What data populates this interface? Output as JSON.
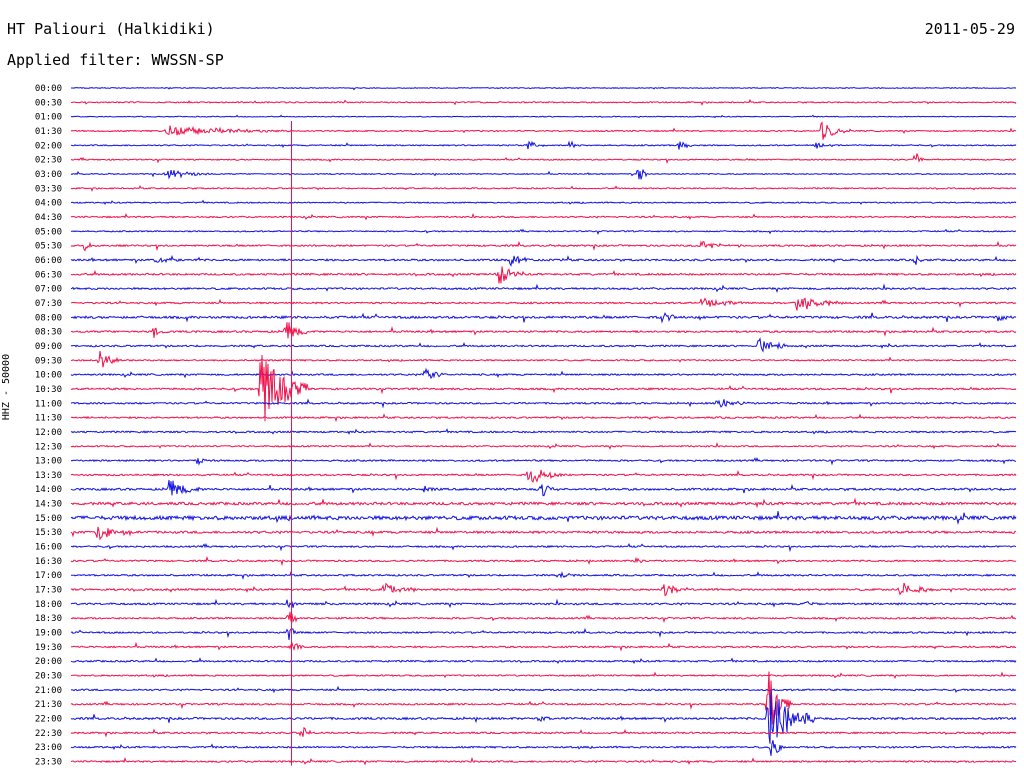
{
  "header": {
    "station": "HT Paliouri (Halkidiki)",
    "date": "2011-05-29",
    "filter": "Applied filter: WWSSN-SP",
    "y_axis_label": "HHZ - 50000"
  },
  "colors": {
    "even_trace": "#1010e0",
    "odd_trace": "#f0104a",
    "background": "#ffffff",
    "text": "#000000"
  },
  "chart_data": {
    "type": "line",
    "title": "HT Paliouri (Halkidiki)",
    "subtitle": "Applied filter: WWSSN-SP",
    "ylabel": "HHZ - 50000",
    "row_labels": [
      "00:00",
      "00:30",
      "01:00",
      "01:30",
      "02:00",
      "02:30",
      "03:00",
      "03:30",
      "04:00",
      "04:30",
      "05:00",
      "05:30",
      "06:00",
      "06:30",
      "07:00",
      "07:30",
      "08:00",
      "08:30",
      "09:00",
      "09:30",
      "10:00",
      "10:30",
      "11:00",
      "11:30",
      "12:00",
      "12:30",
      "13:00",
      "13:30",
      "14:00",
      "14:30",
      "15:00",
      "15:30",
      "16:00",
      "16:30",
      "17:00",
      "17:30",
      "18:00",
      "18:30",
      "19:00",
      "19:30",
      "20:00",
      "20:30",
      "21:00",
      "21:30",
      "22:00",
      "22:30",
      "23:00",
      "23:30"
    ],
    "row_minutes": 30,
    "x_range_minutes": [
      0,
      30
    ],
    "noise_levels": [
      0.4,
      0.6,
      0.4,
      0.6,
      0.6,
      0.6,
      0.5,
      0.6,
      0.6,
      0.7,
      0.6,
      0.8,
      0.9,
      0.9,
      0.9,
      0.8,
      1.1,
      0.9,
      0.8,
      0.7,
      0.8,
      0.9,
      0.8,
      0.8,
      0.8,
      0.7,
      0.8,
      0.8,
      1.0,
      1.3,
      1.8,
      1.1,
      0.8,
      0.8,
      0.8,
      0.9,
      0.9,
      0.8,
      0.8,
      0.8,
      0.8,
      0.7,
      0.8,
      0.8,
      1.0,
      0.8,
      0.8,
      0.8
    ],
    "events": [
      {
        "row": 3,
        "minute": 3.0,
        "amplitude": 6,
        "duration": 4.0
      },
      {
        "row": 3,
        "minute": 23.8,
        "amplitude": 20,
        "duration": 0.6
      },
      {
        "row": 4,
        "minute": 14.5,
        "amplitude": 6,
        "duration": 0.5
      },
      {
        "row": 4,
        "minute": 15.8,
        "amplitude": 6,
        "duration": 0.4
      },
      {
        "row": 4,
        "minute": 19.3,
        "amplitude": 6,
        "duration": 0.4
      },
      {
        "row": 4,
        "minute": 23.6,
        "amplitude": 4,
        "duration": 0.6
      },
      {
        "row": 5,
        "minute": 26.8,
        "amplitude": 12,
        "duration": 0.3
      },
      {
        "row": 6,
        "minute": 3.0,
        "amplitude": 5,
        "duration": 1.5
      },
      {
        "row": 6,
        "minute": 18.0,
        "amplitude": 14,
        "duration": 0.3
      },
      {
        "row": 11,
        "minute": 0.4,
        "amplitude": 8,
        "duration": 0.3
      },
      {
        "row": 11,
        "minute": 20.0,
        "amplitude": 5,
        "duration": 1.0
      },
      {
        "row": 12,
        "minute": 2.7,
        "amplitude": 5,
        "duration": 0.7
      },
      {
        "row": 12,
        "minute": 13.9,
        "amplitude": 9,
        "duration": 0.8
      },
      {
        "row": 12,
        "minute": 26.8,
        "amplitude": 8,
        "duration": 0.2
      },
      {
        "row": 13,
        "minute": 13.5,
        "amplitude": 16,
        "duration": 0.8
      },
      {
        "row": 15,
        "minute": 20.0,
        "amplitude": 5,
        "duration": 1.5
      },
      {
        "row": 15,
        "minute": 23.0,
        "amplitude": 10,
        "duration": 1.5
      },
      {
        "row": 16,
        "minute": 18.7,
        "amplitude": 7,
        "duration": 0.8
      },
      {
        "row": 16,
        "minute": 29.4,
        "amplitude": 6,
        "duration": 0.5
      },
      {
        "row": 17,
        "minute": 2.6,
        "amplitude": 6,
        "duration": 0.5
      },
      {
        "row": 17,
        "minute": 6.8,
        "amplitude": 12,
        "duration": 0.8
      },
      {
        "row": 18,
        "minute": 21.8,
        "amplitude": 9,
        "duration": 1.0
      },
      {
        "row": 19,
        "minute": 0.9,
        "amplitude": 10,
        "duration": 0.8
      },
      {
        "row": 20,
        "minute": 11.2,
        "amplitude": 8,
        "duration": 0.7
      },
      {
        "row": 21,
        "minute": 6.0,
        "amplitude": 42,
        "duration": 1.5
      },
      {
        "row": 22,
        "minute": 20.5,
        "amplitude": 7,
        "duration": 1.0
      },
      {
        "row": 26,
        "minute": 4.0,
        "amplitude": 4,
        "duration": 0.6
      },
      {
        "row": 27,
        "minute": 14.5,
        "amplitude": 11,
        "duration": 1.2
      },
      {
        "row": 28,
        "minute": 3.1,
        "amplitude": 10,
        "duration": 1.2
      },
      {
        "row": 28,
        "minute": 11.2,
        "amplitude": 6,
        "duration": 0.5
      },
      {
        "row": 28,
        "minute": 14.9,
        "amplitude": 10,
        "duration": 0.6
      },
      {
        "row": 31,
        "minute": 0.8,
        "amplitude": 8,
        "duration": 1.5
      },
      {
        "row": 33,
        "minute": 17.9,
        "amplitude": 4,
        "duration": 0.5
      },
      {
        "row": 34,
        "minute": 15.5,
        "amplitude": 4,
        "duration": 0.5
      },
      {
        "row": 35,
        "minute": 9.9,
        "amplitude": 8,
        "duration": 1.2
      },
      {
        "row": 35,
        "minute": 18.8,
        "amplitude": 8,
        "duration": 0.8
      },
      {
        "row": 35,
        "minute": 26.3,
        "amplitude": 8,
        "duration": 1.2
      },
      {
        "row": 36,
        "minute": 6.9,
        "amplitude": 14,
        "duration": 0.3
      },
      {
        "row": 36,
        "minute": 23.3,
        "amplitude": 3,
        "duration": 0.8
      },
      {
        "row": 37,
        "minute": 6.9,
        "amplitude": 22,
        "duration": 0.3
      },
      {
        "row": 38,
        "minute": 6.9,
        "amplitude": 12,
        "duration": 0.3
      },
      {
        "row": 39,
        "minute": 7.0,
        "amplitude": 10,
        "duration": 0.4
      },
      {
        "row": 43,
        "minute": 22.1,
        "amplitude": 40,
        "duration": 0.8
      },
      {
        "row": 44,
        "minute": 22.1,
        "amplitude": 38,
        "duration": 1.5
      },
      {
        "row": 44,
        "minute": 14.8,
        "amplitude": 6,
        "duration": 0.5
      },
      {
        "row": 45,
        "minute": 7.3,
        "amplitude": 12,
        "duration": 0.3
      },
      {
        "row": 46,
        "minute": 22.2,
        "amplitude": 14,
        "duration": 0.5
      }
    ],
    "marker_lines": [
      {
        "row_start": 3,
        "row_end": 47,
        "minute": 7.0
      }
    ]
  }
}
